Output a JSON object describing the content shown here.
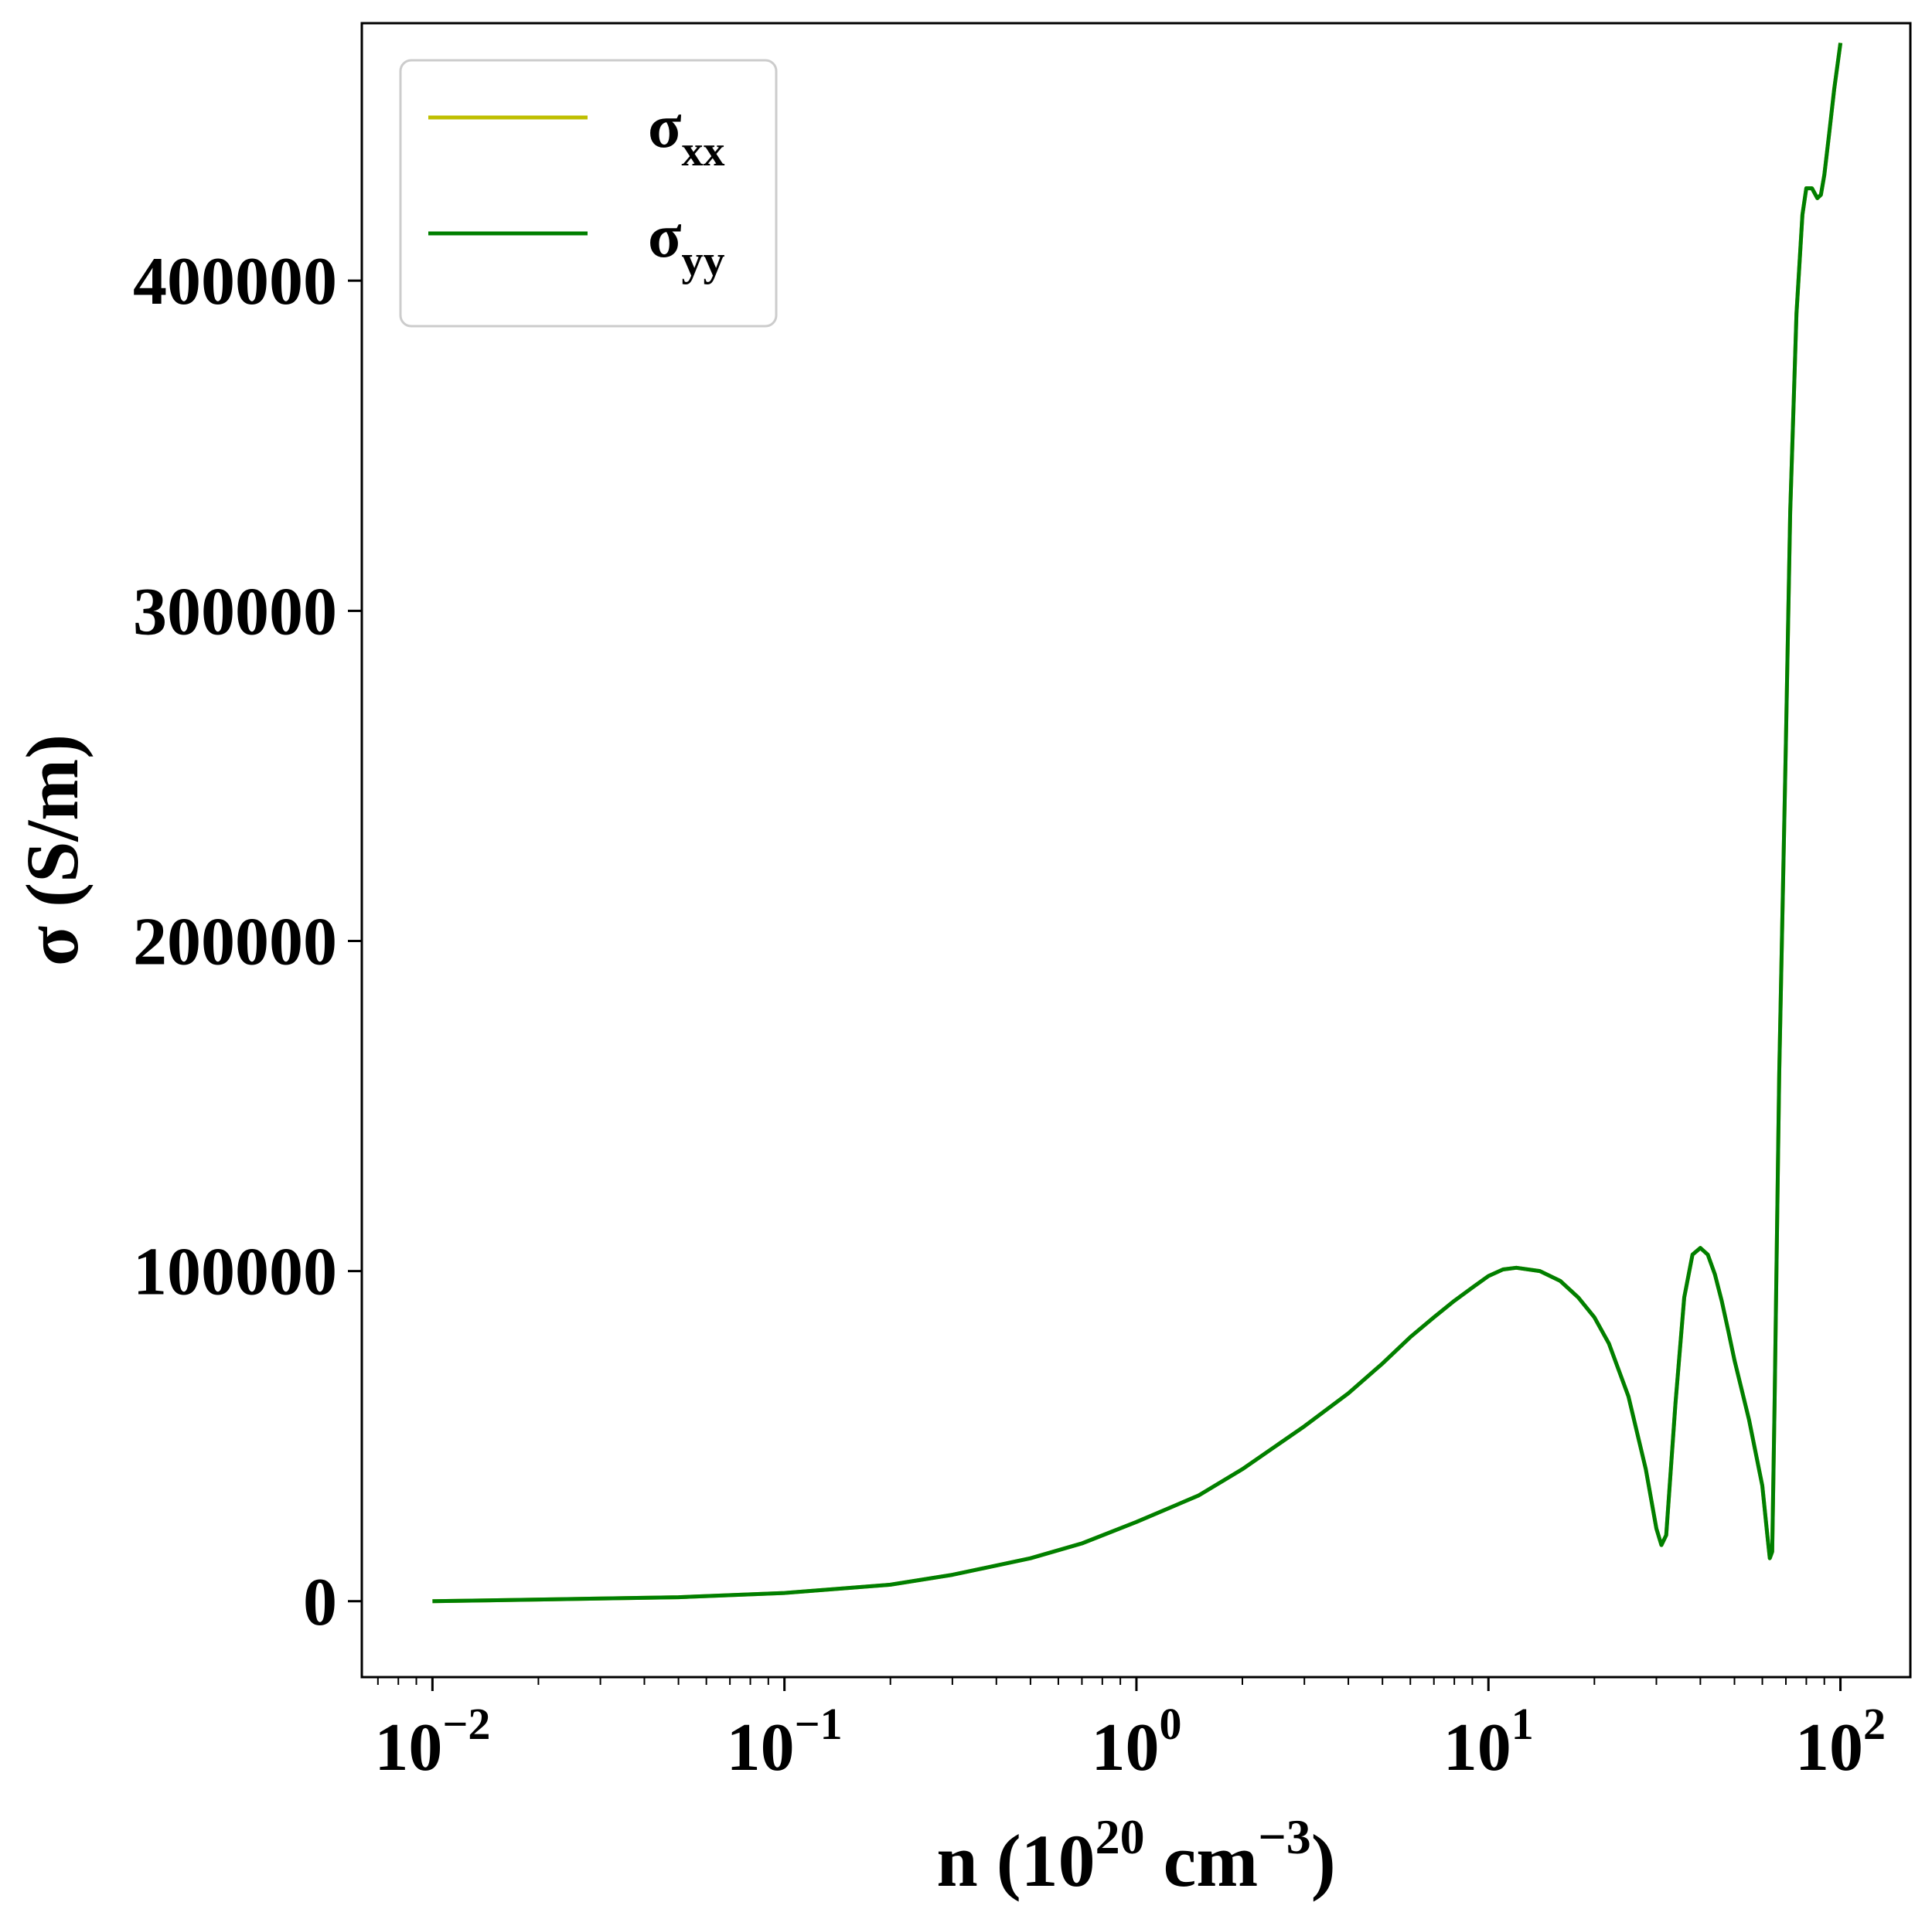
{
  "chart_data": {
    "type": "line",
    "xscale": "log",
    "xlim": [
      0.0063,
      158
    ],
    "ylim": [
      -23000,
      478000
    ],
    "grid": false,
    "legend": "upper-left",
    "xlabel": {
      "base": "n (10",
      "exp": "20",
      "mid": " cm",
      "exp2": "−3",
      "end": ")"
    },
    "ylabel": "σ (S/m)",
    "yticks": [
      {
        "value": 0,
        "label": "0"
      },
      {
        "value": 100000,
        "label": "100000"
      },
      {
        "value": 200000,
        "label": "200000"
      },
      {
        "value": 300000,
        "label": "300000"
      },
      {
        "value": 400000,
        "label": "400000"
      }
    ],
    "xticks": [
      {
        "value": 0.01,
        "base": "10",
        "exp": "−2"
      },
      {
        "value": 0.1,
        "base": "10",
        "exp": "−1"
      },
      {
        "value": 1,
        "base": "10",
        "exp": "0"
      },
      {
        "value": 10,
        "base": "10",
        "exp": "1"
      },
      {
        "value": 100,
        "base": "10",
        "exp": "2"
      }
    ],
    "series": [
      {
        "name": "σxx",
        "main": "σ",
        "sub": "xx",
        "color": "#bfbf00",
        "x": [
          0.01,
          0.02,
          0.05,
          0.1,
          0.2,
          0.3,
          0.5,
          0.7,
          1,
          1.5,
          2,
          3,
          4,
          5,
          6,
          7,
          8,
          9,
          10,
          11,
          12,
          14,
          16,
          18,
          20,
          22,
          25,
          28,
          30,
          31,
          32,
          34,
          36,
          38,
          40,
          42,
          44,
          46,
          48,
          50,
          55,
          60,
          62,
          63,
          64,
          65,
          67,
          70,
          72,
          75,
          78,
          80,
          83,
          86,
          88,
          90,
          93,
          96,
          100
        ],
        "y": [
          0,
          500,
          1200,
          2500,
          5000,
          8000,
          13000,
          17500,
          24000,
          32000,
          40000,
          53000,
          63000,
          72000,
          80000,
          86000,
          91000,
          95000,
          98500,
          100500,
          101000,
          100000,
          97000,
          92000,
          86000,
          78000,
          62000,
          40000,
          22000,
          17000,
          20000,
          60000,
          92000,
          105000,
          107000,
          105000,
          99000,
          91000,
          82000,
          73000,
          55000,
          35000,
          20000,
          13000,
          15000,
          60000,
          160000,
          260000,
          330000,
          390000,
          420000,
          428000,
          428000,
          425000,
          426000,
          432000,
          445000,
          458000,
          472000
        ]
      },
      {
        "name": "σyy",
        "main": "σ",
        "sub": "yy",
        "color": "#007f00",
        "x": [
          0.01,
          0.02,
          0.05,
          0.1,
          0.2,
          0.3,
          0.5,
          0.7,
          1,
          1.5,
          2,
          3,
          4,
          5,
          6,
          7,
          8,
          9,
          10,
          11,
          12,
          14,
          16,
          18,
          20,
          22,
          25,
          28,
          30,
          31,
          32,
          34,
          36,
          38,
          40,
          42,
          44,
          46,
          48,
          50,
          55,
          60,
          62,
          63,
          64,
          65,
          67,
          70,
          72,
          75,
          78,
          80,
          83,
          86,
          88,
          90,
          93,
          96,
          100
        ],
        "y": [
          0,
          500,
          1200,
          2500,
          5000,
          8000,
          13000,
          17500,
          24000,
          32000,
          40000,
          53000,
          63000,
          72000,
          80000,
          86000,
          91000,
          95000,
          98500,
          100500,
          101000,
          100000,
          97000,
          92000,
          86000,
          78000,
          62000,
          40000,
          22000,
          17000,
          20000,
          60000,
          92000,
          105000,
          107000,
          105000,
          99000,
          91000,
          82000,
          73000,
          55000,
          35000,
          20000,
          13000,
          15000,
          60000,
          160000,
          260000,
          330000,
          390000,
          420000,
          428000,
          428000,
          425000,
          426000,
          432000,
          445000,
          458000,
          472000
        ]
      }
    ]
  }
}
